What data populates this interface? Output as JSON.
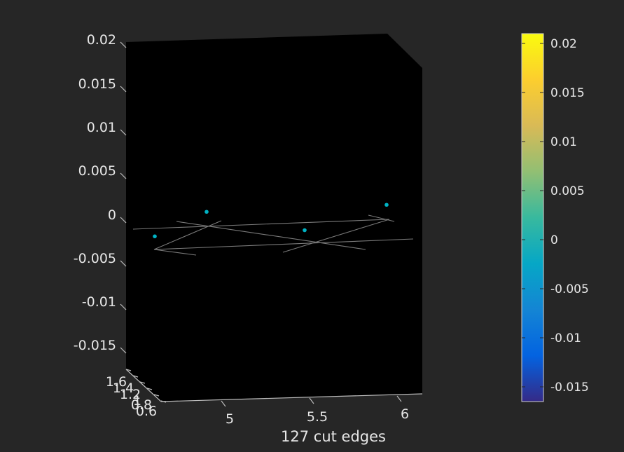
{
  "chart_data": {
    "type": "scatter3d",
    "title": "",
    "xlabel": "127 cut edges",
    "ylabel": "",
    "zlabel": "",
    "x_ticks": [
      "5",
      "5.5",
      "6"
    ],
    "y_ticks": [
      "1.6",
      "1.4",
      "1.2",
      "1",
      "0.8",
      "0.6"
    ],
    "z_ticks": [
      "0.02",
      "0.015",
      "0.01",
      "0.005",
      "0",
      "-0.005",
      "-0.01",
      "-0.015"
    ],
    "zlim": [
      -0.02,
      0.02
    ],
    "grid": false,
    "axes_background": "#000000",
    "figure_background": "#262626",
    "edge_color": "#7a7a7a",
    "marker_color": "#00b3c4",
    "points": [
      {
        "z": -0.0025
      },
      {
        "z": 0.0003
      },
      {
        "z": -0.0018
      },
      {
        "z": 0.0011
      }
    ],
    "colorbar": {
      "colormap": "parula",
      "range": [
        -0.0165,
        0.021
      ],
      "ticks": [
        "0.02",
        "0.015",
        "0.01",
        "0.005",
        "0",
        "-0.005",
        "-0.01",
        "-0.015"
      ],
      "tick_values": [
        0.02,
        0.015,
        0.01,
        0.005,
        0,
        -0.005,
        -0.01,
        -0.015
      ]
    }
  }
}
